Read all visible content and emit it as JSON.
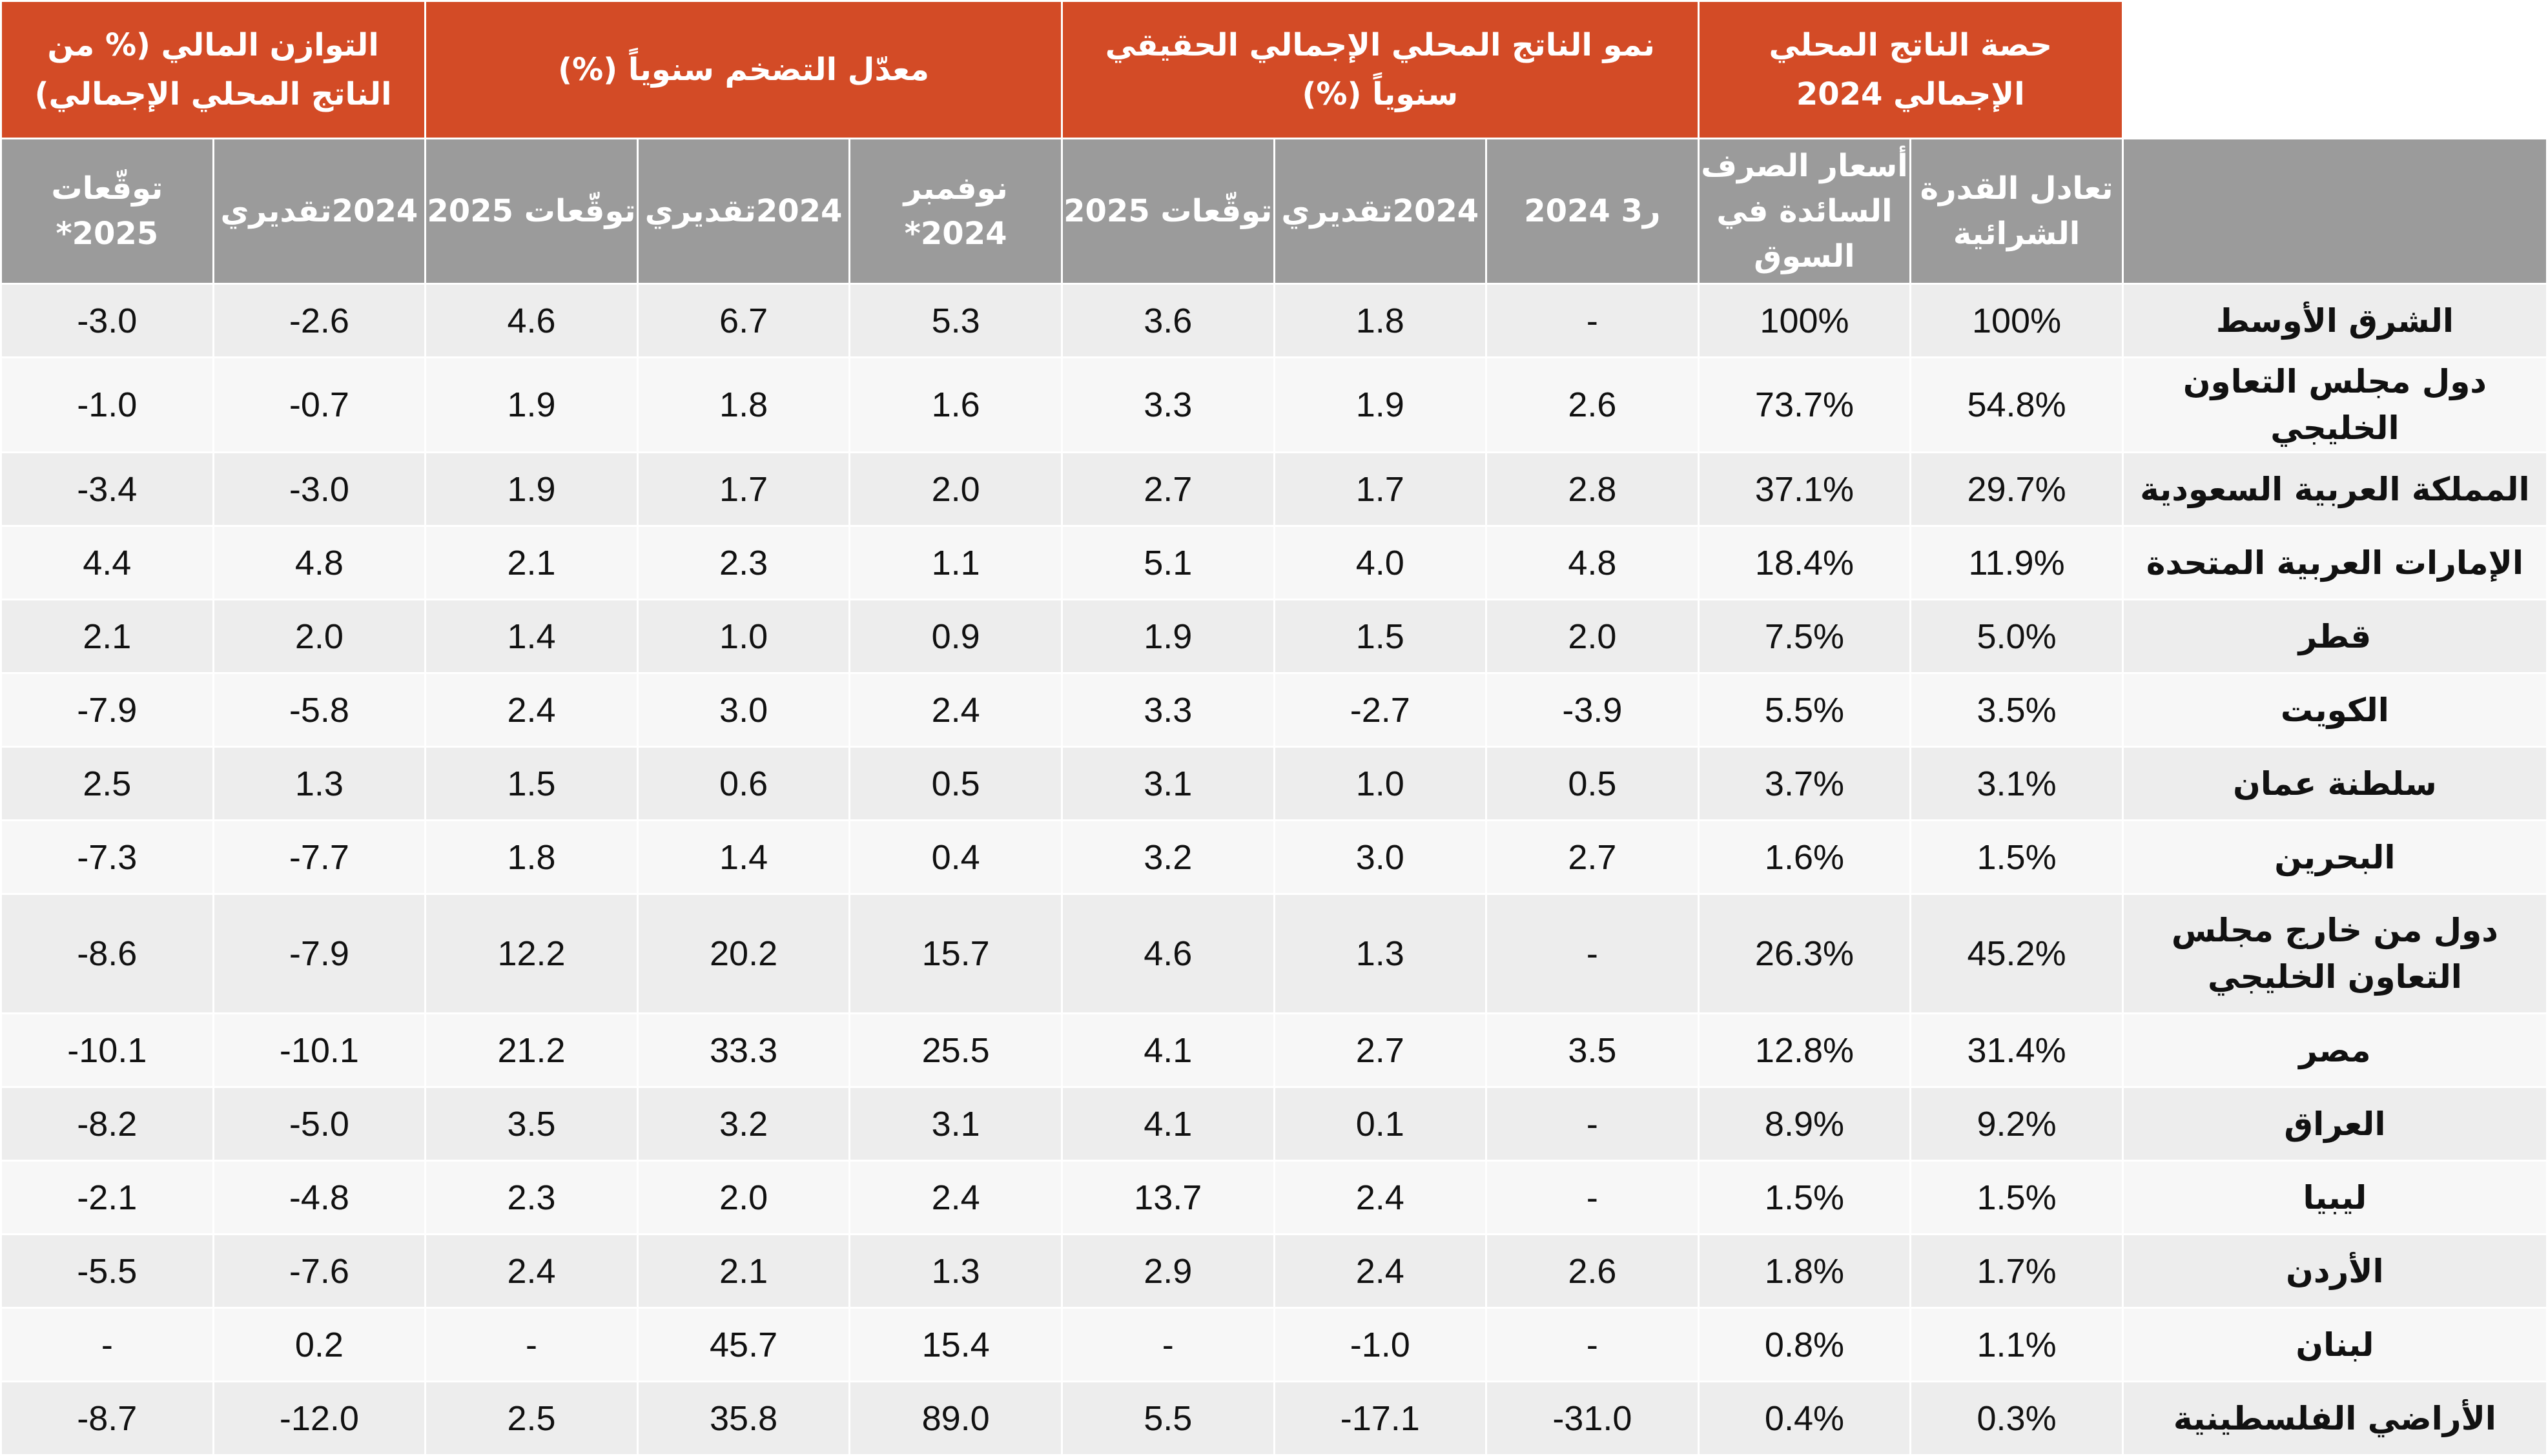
{
  "group_headers": [
    "حصة الناتج المحلي الإجمالي 2024",
    "نمو الناتج المحلي الإجمالي الحقيقي سنوياً (%)",
    "معدّل التضخم سنوياً (%)",
    "التوازن المالي (% من الناتج المحلي الإجمالي)"
  ],
  "sub_headers": [
    "تعادل القدرة الشرائية",
    "أسعار الصرف السائدة في السوق",
    "ر3 2024",
    "2024تقديري",
    "توقّعات 2025",
    "نوفمبر 2024*",
    "2024تقديري",
    "توقّعات 2025",
    "2024تقديري",
    "توقّعات 2025*"
  ],
  "rows": [
    {
      "country": "الشرق الأوسط",
      "values": [
        "100%",
        "100%",
        "-",
        "1.8",
        "3.6",
        "5.3",
        "6.7",
        "4.6",
        "-2.6",
        "-3.0"
      ]
    },
    {
      "country": "دول مجلس التعاون الخليجي",
      "values": [
        "54.8%",
        "73.7%",
        "2.6",
        "1.9",
        "3.3",
        "1.6",
        "1.8",
        "1.9",
        "-0.7",
        "-1.0"
      ]
    },
    {
      "country": "المملكة العربية السعودية",
      "values": [
        "29.7%",
        "37.1%",
        "2.8",
        "1.7",
        "2.7",
        "2.0",
        "1.7",
        "1.9",
        "-3.0",
        "-3.4"
      ]
    },
    {
      "country": "الإمارات العربية المتحدة",
      "values": [
        "11.9%",
        "18.4%",
        "4.8",
        "4.0",
        "5.1",
        "1.1",
        "2.3",
        "2.1",
        "4.8",
        "4.4"
      ]
    },
    {
      "country": "قطر",
      "values": [
        "5.0%",
        "7.5%",
        "2.0",
        "1.5",
        "1.9",
        "0.9",
        "1.0",
        "1.4",
        "2.0",
        "2.1"
      ]
    },
    {
      "country": "الكويت",
      "values": [
        "3.5%",
        "5.5%",
        "-3.9",
        "-2.7",
        "3.3",
        "2.4",
        "3.0",
        "2.4",
        "-5.8",
        "-7.9"
      ]
    },
    {
      "country": "سلطنة عمان",
      "values": [
        "3.1%",
        "3.7%",
        "0.5",
        "1.0",
        "3.1",
        "0.5",
        "0.6",
        "1.5",
        "1.3",
        "2.5"
      ]
    },
    {
      "country": "البحرين",
      "values": [
        "1.5%",
        "1.6%",
        "2.7",
        "3.0",
        "3.2",
        "0.4",
        "1.4",
        "1.8",
        "-7.7",
        "-7.3"
      ]
    },
    {
      "country": "دول من خارج مجلس التعاون الخليجي",
      "values": [
        "45.2%",
        "26.3%",
        "-",
        "1.3",
        "4.6",
        "15.7",
        "20.2",
        "12.2",
        "-7.9",
        "-8.6"
      ]
    },
    {
      "country": "مصر",
      "values": [
        "31.4%",
        "12.8%",
        "3.5",
        "2.7",
        "4.1",
        "25.5",
        "33.3",
        "21.2",
        "-10.1",
        "-10.1"
      ]
    },
    {
      "country": "العراق",
      "values": [
        "9.2%",
        "8.9%",
        "-",
        "0.1",
        "4.1",
        "3.1",
        "3.2",
        "3.5",
        "-5.0",
        "-8.2"
      ]
    },
    {
      "country": "ليبيا",
      "values": [
        "1.5%",
        "1.5%",
        "-",
        "2.4",
        "13.7",
        "2.4",
        "2.0",
        "2.3",
        "-4.8",
        "-2.1"
      ]
    },
    {
      "country": "الأردن",
      "values": [
        "1.7%",
        "1.8%",
        "2.6",
        "2.4",
        "2.9",
        "1.3",
        "2.1",
        "2.4",
        "-7.6",
        "-5.5"
      ]
    },
    {
      "country": "لبنان",
      "values": [
        "1.1%",
        "0.8%",
        "-",
        "-1.0",
        "-",
        "15.4",
        "45.7",
        "-",
        "0.2",
        "-"
      ]
    },
    {
      "country": "الأراضي الفلسطينية",
      "values": [
        "0.3%",
        "0.4%",
        "-31.0",
        "-17.1",
        "5.5",
        "89.0",
        "35.8",
        "2.5",
        "-12.0",
        "-8.7"
      ]
    }
  ]
}
